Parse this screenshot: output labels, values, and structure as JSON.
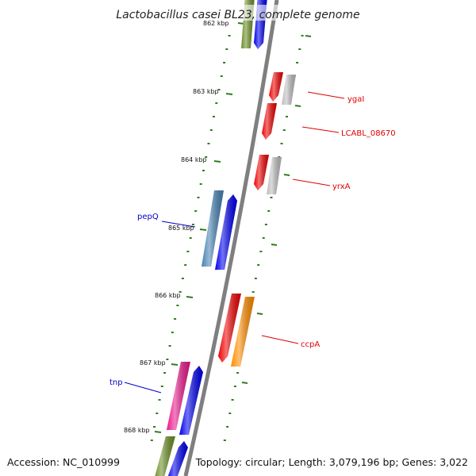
{
  "title": "Lactobacillus casei BL23, complete genome",
  "accession": "Accession: NC_010999",
  "topology": "Topology: circular; Length: 3,079,196 bp; Genes: 3,022",
  "colors": {
    "backbone": "#7f7f7f",
    "tick": "#2e7d1e",
    "red_label": "#e00000",
    "blue_label": "#0000cc"
  },
  "tick_labels": [
    "862 kbp",
    "863 kbp",
    "864 kbp",
    "865 kbp",
    "866 kbp",
    "867 kbp",
    "868 kbp"
  ],
  "gene_labels": [
    {
      "name": "ygaI",
      "color": "#e00000"
    },
    {
      "name": "LCABL_08670",
      "color": "#e00000"
    },
    {
      "name": "yrxA",
      "color": "#e00000"
    },
    {
      "name": "pepQ",
      "color": "#0000cc"
    },
    {
      "name": "ccpA",
      "color": "#e00000"
    },
    {
      "name": "tnp",
      "color": "#0000cc"
    }
  ],
  "features": [
    {
      "name": "olive-feature-top",
      "color": "#6b8e23"
    },
    {
      "name": "blue-feature-top",
      "color": "#0000ee"
    },
    {
      "name": "ygaI-gene",
      "color": "#ee0000"
    },
    {
      "name": "ygaI-cog",
      "color": "#bdbdbd"
    },
    {
      "name": "LCABL_08670-gene",
      "color": "#ee0000"
    },
    {
      "name": "yrxA-gene",
      "color": "#ee0000"
    },
    {
      "name": "yrxA-cog",
      "color": "#bdbdbd"
    },
    {
      "name": "pepQ-cog",
      "color": "#4682b4"
    },
    {
      "name": "pepQ-gene",
      "color": "#0000ee"
    },
    {
      "name": "ccpA-gene",
      "color": "#ee0000"
    },
    {
      "name": "ccpA-cog",
      "color": "#ff8c00"
    },
    {
      "name": "tnp-cog",
      "color": "#e9178a"
    },
    {
      "name": "tnp-gene",
      "color": "#0000ee"
    },
    {
      "name": "olive-feature-bottom",
      "color": "#6b8e23"
    },
    {
      "name": "blue-feature-bottom",
      "color": "#0000ee"
    }
  ]
}
